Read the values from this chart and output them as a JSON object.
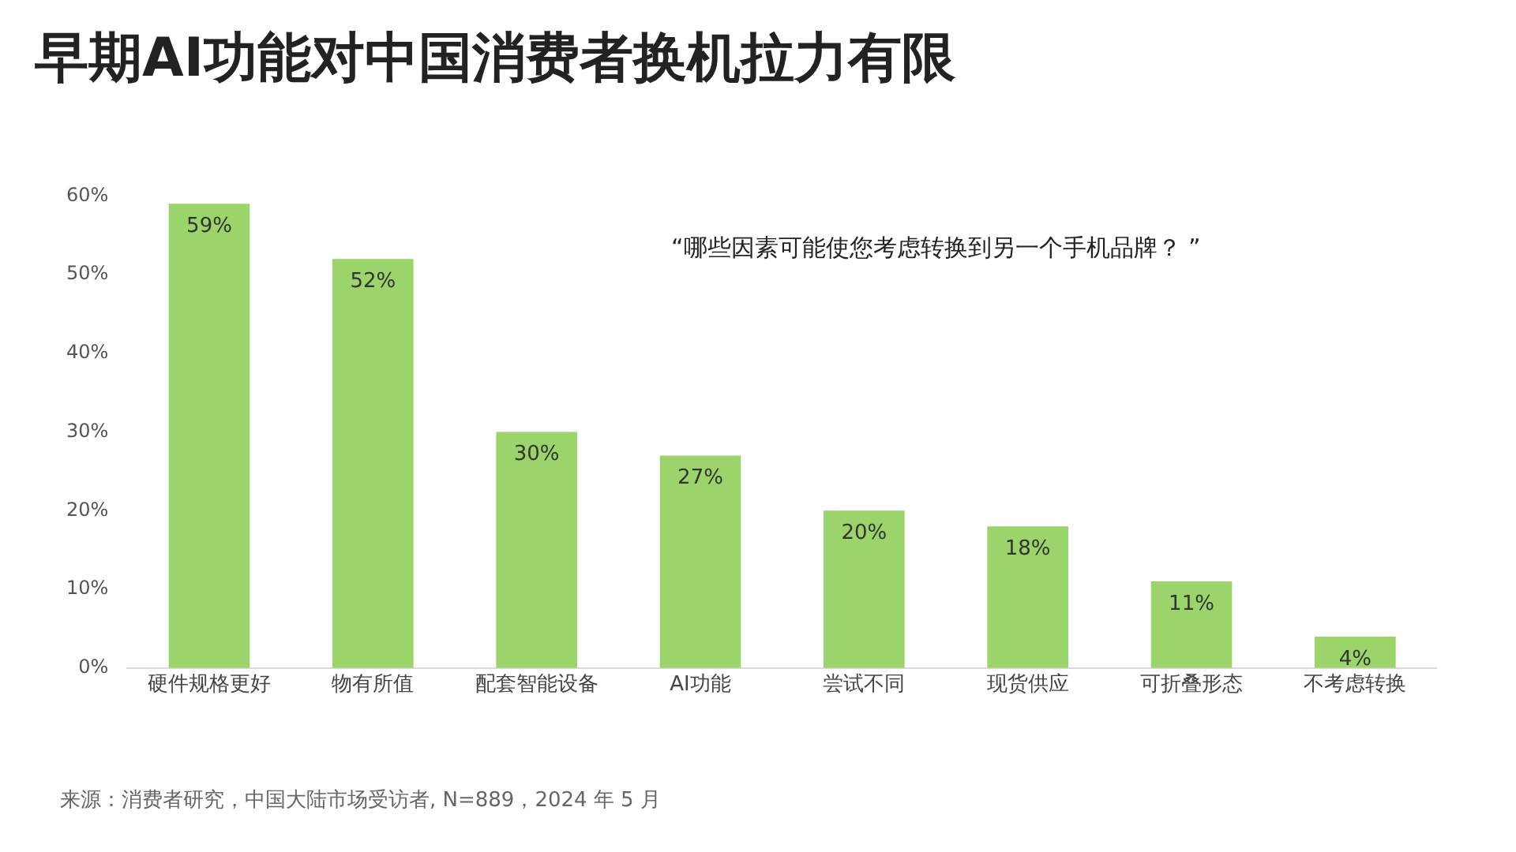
{
  "chart_data": {
    "type": "bar",
    "title": "早期AI功能对中国消费者换机拉力有限",
    "categories": [
      "硬件规格更好",
      "物有所值",
      "配套智能设备",
      "AI功能",
      "尝试不同",
      "现货供应",
      "可折叠形态",
      "不考虑转换"
    ],
    "values": [
      59,
      52,
      30,
      27,
      20,
      18,
      11,
      4
    ],
    "value_labels": [
      "59%",
      "52%",
      "30%",
      "27%",
      "20%",
      "18%",
      "11%",
      "4%"
    ],
    "color": "#9bd46a",
    "ylim": [
      0,
      60
    ],
    "yticks": [
      {
        "value": 0,
        "label": "0%"
      },
      {
        "value": 10,
        "label": "10%"
      },
      {
        "value": 20,
        "label": "20%"
      },
      {
        "value": 30,
        "label": "30%"
      },
      {
        "value": 40,
        "label": "40%"
      },
      {
        "value": 50,
        "label": "50%"
      },
      {
        "value": 60,
        "label": "60%"
      }
    ],
    "grid": false,
    "legend": false,
    "annotations": [
      "“哪些因素可能使您考虑转换到另一个手机品牌？ ”",
      "来源：消费者研究，中国大陆市场受访者, N=889，2024 年 5 月"
    ]
  }
}
